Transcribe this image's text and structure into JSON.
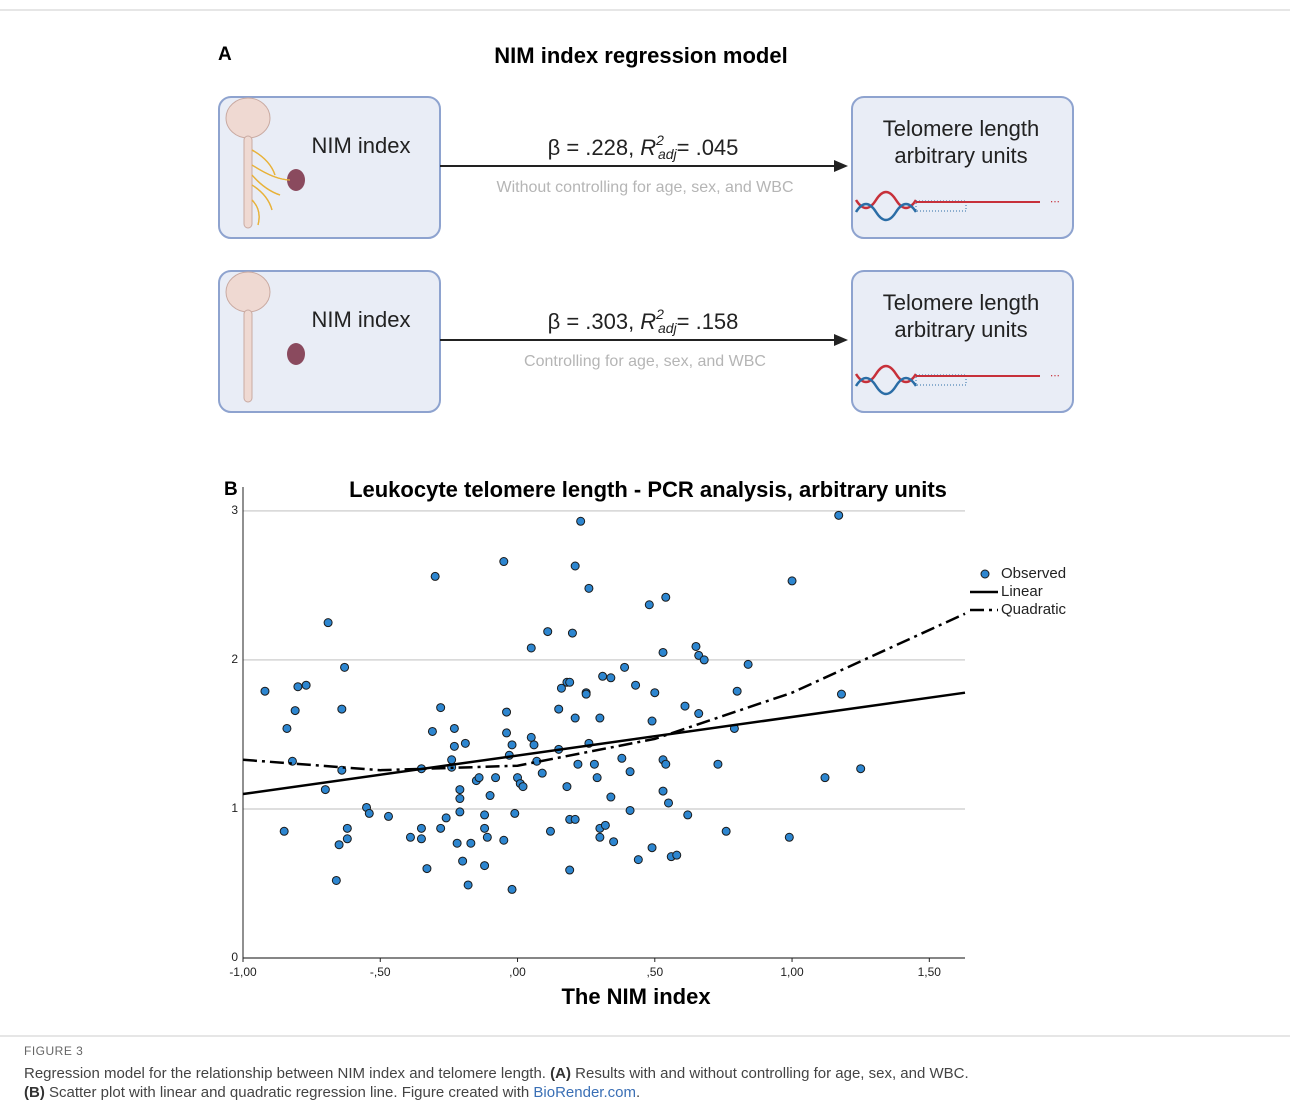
{
  "panel_a": {
    "label": "A",
    "title": "NIM index regression model",
    "rows": [
      {
        "source": "NIM index",
        "beta": "β = .228,",
        "r": "R",
        "r_sup": "2",
        "r_sub": "adj",
        "r_value": "= .045",
        "note": "Without controlling for age, sex, and WBC",
        "target_line1": "Telomere length",
        "target_line2": "arbitrary units"
      },
      {
        "source": "NIM index",
        "beta": "β = .303,",
        "r": "R",
        "r_sup": "2",
        "r_sub": "adj",
        "r_value": "= .158",
        "note": "Controlling for age, sex, and WBC",
        "target_line1": "Telomere length",
        "target_line2": "arbitrary units"
      }
    ]
  },
  "chart_data": {
    "type": "scatter",
    "label": "B",
    "title": "Leukocyte telomere length - PCR analysis, arbitrary units",
    "x_label": "The NIM index",
    "xlim": [
      -1.0,
      1.63
    ],
    "ylim": [
      0,
      3.16
    ],
    "xticks": [
      {
        "value": -1.0,
        "label": "-1,00"
      },
      {
        "value": -0.5,
        "label": "-,50"
      },
      {
        "value": 0,
        "label": ",00"
      },
      {
        "value": 0.5,
        "label": ",50"
      },
      {
        "value": 1.0,
        "label": "1,00"
      },
      {
        "value": 1.5,
        "label": "1,50"
      }
    ],
    "yticks": [
      0,
      1,
      2,
      3
    ],
    "grid": true,
    "legend": "right",
    "series": [
      {
        "name": "Observed",
        "type": "scatter",
        "color": "#2d86d0",
        "x": [
          -0.92,
          -0.85,
          -0.84,
          -0.82,
          -0.81,
          -0.8,
          -0.77,
          -0.69,
          -0.7,
          -0.66,
          -0.65,
          -0.64,
          -0.64,
          -0.63,
          -0.62,
          -0.62,
          -0.55,
          -0.54,
          -0.47,
          -0.39,
          -0.35,
          -0.35,
          -0.35,
          -0.33,
          -0.31,
          -0.3,
          -0.28,
          -0.28,
          -0.26,
          -0.24,
          -0.24,
          -0.23,
          -0.23,
          -0.22,
          -0.21,
          -0.21,
          -0.21,
          -0.19,
          -0.2,
          -0.18,
          -0.17,
          -0.15,
          -0.14,
          -0.12,
          -0.12,
          -0.12,
          -0.11,
          -0.1,
          -0.08,
          -0.05,
          -0.05,
          -0.04,
          -0.04,
          -0.03,
          -0.02,
          -0.02,
          -0.01,
          0.0,
          0.01,
          0.02,
          0.05,
          0.05,
          0.06,
          0.07,
          0.09,
          0.11,
          0.12,
          0.15,
          0.15,
          0.16,
          0.18,
          0.18,
          0.19,
          0.19,
          0.19,
          0.2,
          0.21,
          0.21,
          0.21,
          0.22,
          0.23,
          0.25,
          0.25,
          0.26,
          0.26,
          0.28,
          0.29,
          0.3,
          0.3,
          0.3,
          0.31,
          0.32,
          0.34,
          0.34,
          0.35,
          0.38,
          0.39,
          0.41,
          0.41,
          0.43,
          0.44,
          0.48,
          0.49,
          0.49,
          0.5,
          0.53,
          0.53,
          0.53,
          0.54,
          0.54,
          0.55,
          0.56,
          0.58,
          0.61,
          0.62,
          0.65,
          0.66,
          0.66,
          0.68,
          0.73,
          0.76,
          0.79,
          0.8,
          0.84,
          0.99,
          1.0,
          1.12,
          1.17,
          1.18,
          1.25
        ],
        "values": [
          1.79,
          0.85,
          1.54,
          1.32,
          1.66,
          1.82,
          1.83,
          2.25,
          1.13,
          0.52,
          0.76,
          1.26,
          1.67,
          1.95,
          0.87,
          0.8,
          1.01,
          0.97,
          0.95,
          0.81,
          0.8,
          0.87,
          1.27,
          0.6,
          1.52,
          2.56,
          0.87,
          1.68,
          0.94,
          1.28,
          1.33,
          1.54,
          1.42,
          0.77,
          0.98,
          1.13,
          1.07,
          1.44,
          0.65,
          0.49,
          0.77,
          1.19,
          1.21,
          0.96,
          0.87,
          0.62,
          0.81,
          1.09,
          1.21,
          0.79,
          2.66,
          1.51,
          1.65,
          1.36,
          0.46,
          1.43,
          0.97,
          1.21,
          1.17,
          1.15,
          1.48,
          2.08,
          1.43,
          1.32,
          1.24,
          2.19,
          0.85,
          1.4,
          1.67,
          1.81,
          1.85,
          1.15,
          0.93,
          0.59,
          1.85,
          2.18,
          0.93,
          1.61,
          2.63,
          1.3,
          2.93,
          1.78,
          1.77,
          2.48,
          1.44,
          1.3,
          1.21,
          1.61,
          0.87,
          0.81,
          1.89,
          0.89,
          1.08,
          1.88,
          0.78,
          1.34,
          1.95,
          1.25,
          0.99,
          1.83,
          0.66,
          2.37,
          0.74,
          1.59,
          1.78,
          1.33,
          1.12,
          2.05,
          1.3,
          2.42,
          1.04,
          0.68,
          0.69,
          1.69,
          0.96,
          2.09,
          1.64,
          2.03,
          2.0,
          1.3,
          0.85,
          1.54,
          1.79,
          1.97,
          0.81,
          2.53,
          1.21,
          2.97,
          1.77,
          1.27
        ]
      },
      {
        "name": "Linear",
        "type": "line",
        "color": "#000000",
        "dash": "solid",
        "x": [
          -1.0,
          1.63
        ],
        "values": [
          1.1,
          1.78
        ]
      },
      {
        "name": "Quadratic",
        "type": "line",
        "color": "#000000",
        "dash": "dashdot",
        "x": [
          -1.0,
          -0.5,
          0,
          0.5,
          1.0,
          1.63
        ],
        "values": [
          1.33,
          1.26,
          1.29,
          1.47,
          1.78,
          2.31
        ]
      }
    ]
  },
  "caption": {
    "figure_label": "FIGURE 3",
    "sentence1": "Regression model for the relationship between NIM index and telomere length.",
    "marker_a": "(A)",
    "text_a": "Results with and without controlling for age, sex, and WBC.",
    "marker_b": "(B)",
    "text_b": "Scatter plot with linear and quadratic regression line. Figure created with",
    "link": "BioRender.com",
    "end": "."
  }
}
